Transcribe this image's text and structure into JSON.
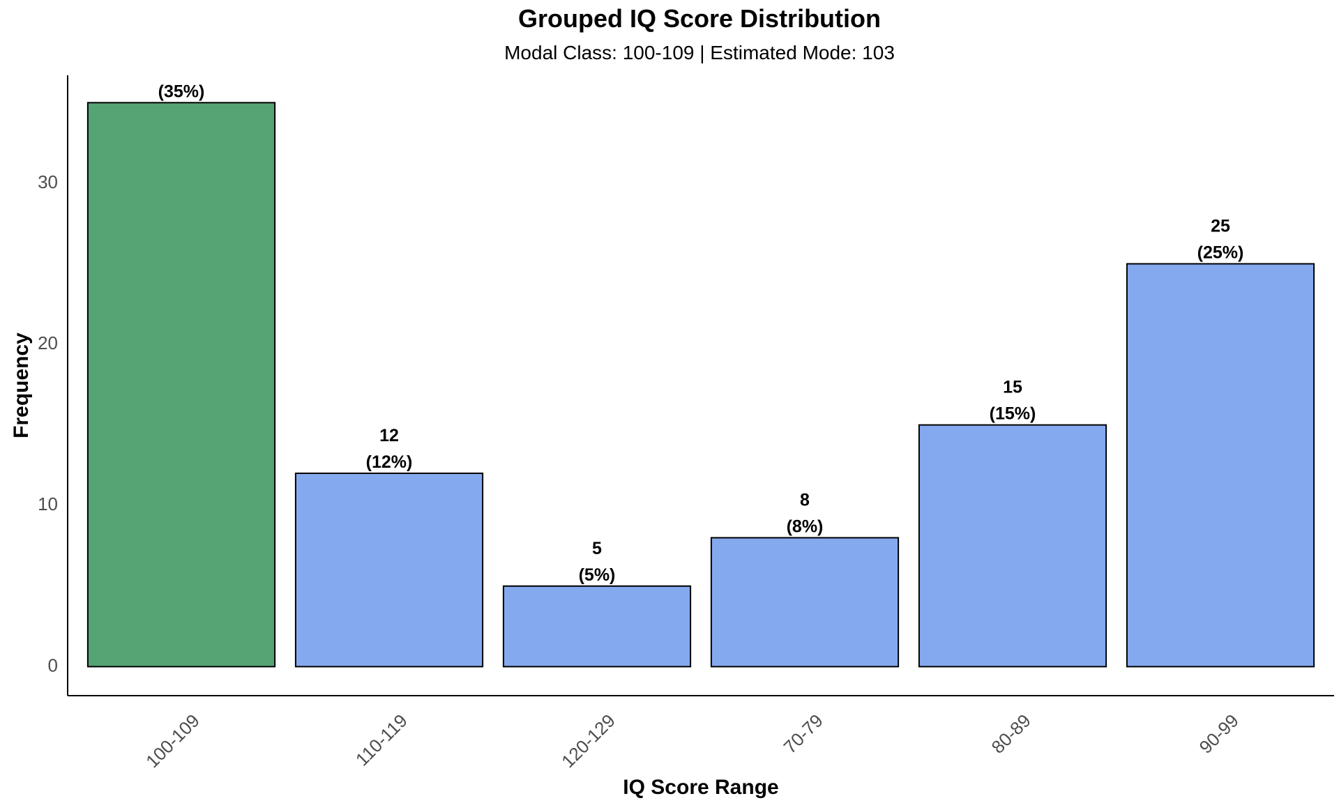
{
  "chart_data": {
    "type": "bar",
    "title": "Grouped IQ Score Distribution",
    "subtitle": "Modal Class: 100-109 | Estimated Mode: 103",
    "xlabel": "IQ Score Range",
    "ylabel": "Frequency",
    "categories": [
      "100-109",
      "110-119",
      "120-129",
      "70-79",
      "80-89",
      "90-99"
    ],
    "values": [
      35,
      12,
      5,
      8,
      15,
      25
    ],
    "percent_labels": [
      "(35%)",
      "(12%)",
      "(5%)",
      "(8%)",
      "(15%)",
      "(25%)"
    ],
    "highlight_category": "100-109",
    "colors": {
      "highlight": "#56a374",
      "default": "#84a9ef",
      "outline": "#000000"
    },
    "yticks": [
      0,
      10,
      20,
      30
    ],
    "ylim": [
      -1.8,
      36.7
    ],
    "grid": false,
    "legend": "none"
  }
}
